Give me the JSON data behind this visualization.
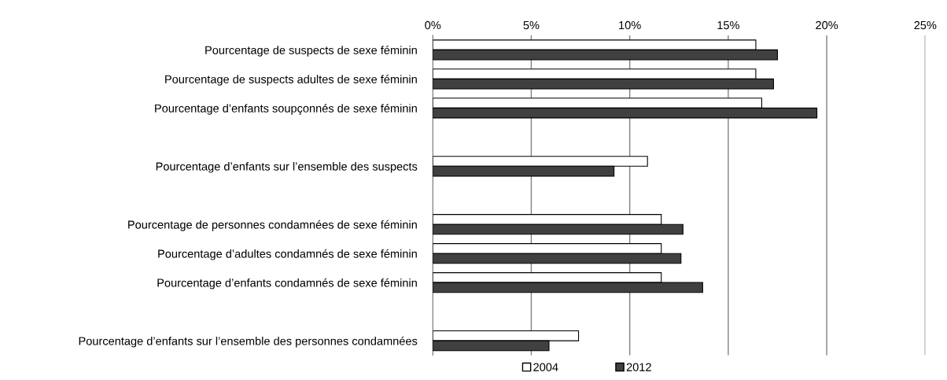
{
  "chart_data": {
    "type": "bar",
    "orientation": "horizontal",
    "categories": [
      "Pourcentage de suspects de sexe féminin",
      "Pourcentage de suspects adultes de sexe féminin",
      "Pourcentage d’enfants soupçonnés de sexe féminin",
      null,
      "Pourcentage d’enfants sur l’ensemble des suspects",
      null,
      "Pourcentage de personnes condamnées de sexe féminin",
      "Pourcentage d’adultes condamnés de sexe féminin",
      "Pourcentage d’enfants condamnés de sexe féminin",
      null,
      "Pourcentage d’enfants sur l’ensemble des personnes condamnées"
    ],
    "series": [
      {
        "name": "2004",
        "color": "#ffffff",
        "values": [
          16.4,
          16.4,
          16.7,
          null,
          10.9,
          null,
          11.6,
          11.6,
          11.6,
          null,
          7.4
        ]
      },
      {
        "name": "2012",
        "color": "#404040",
        "values": [
          17.5,
          17.3,
          19.5,
          null,
          9.2,
          null,
          12.7,
          12.6,
          13.7,
          null,
          5.9
        ]
      }
    ],
    "xlim": [
      0,
      25
    ],
    "xticks": [
      {
        "value": 0,
        "label": "0%"
      },
      {
        "value": 5,
        "label": "5%"
      },
      {
        "value": 10,
        "label": "10%"
      },
      {
        "value": 15,
        "label": "15%"
      },
      {
        "value": 20,
        "label": "20%"
      },
      {
        "value": 25,
        "label": "25%"
      }
    ],
    "grid": "x",
    "legend": "bottom"
  }
}
